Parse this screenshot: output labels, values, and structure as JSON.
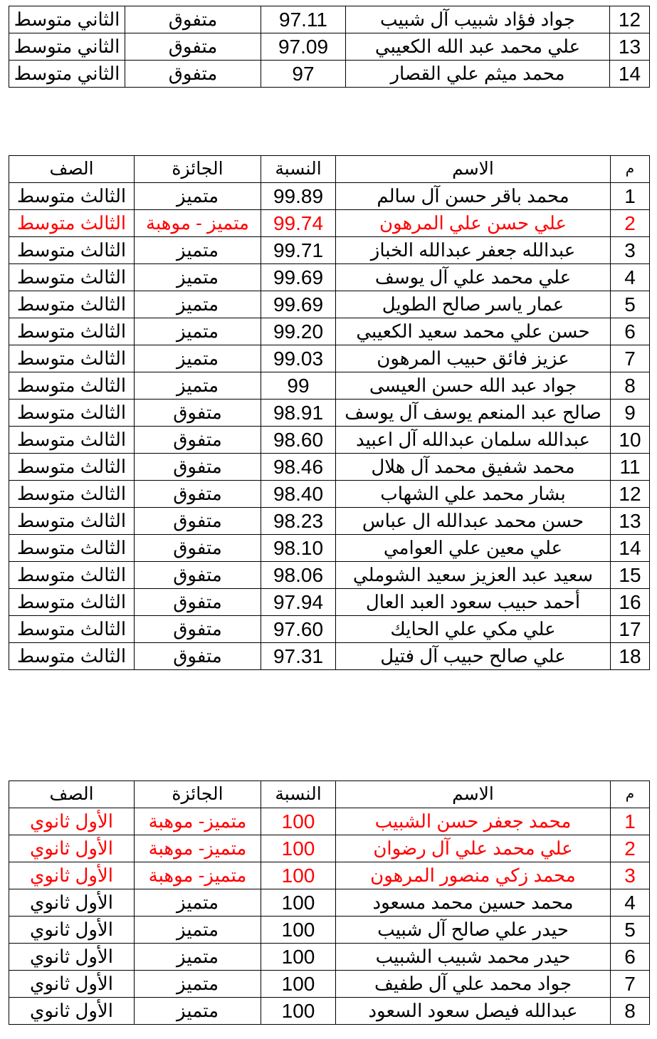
{
  "tables": [
    {
      "headers": null,
      "rows": [
        {
          "n": "12",
          "name": "جواد فؤاد شبيب آل شبيب",
          "pct": "97.11",
          "award": "متفوق",
          "grade": "الثاني متوسط",
          "highlight": false
        },
        {
          "n": "13",
          "name": "علي محمد عبد الله الكعيبي",
          "pct": "97.09",
          "award": "متفوق",
          "grade": "الثاني متوسط",
          "highlight": false
        },
        {
          "n": "14",
          "name": "محمد ميثم علي القصار",
          "pct": "97",
          "award": "متفوق",
          "grade": "الثاني متوسط",
          "highlight": false
        }
      ]
    },
    {
      "headers": {
        "n": "م",
        "name": "الاسم",
        "pct": "النسبة",
        "award": "الجائزة",
        "grade": "الصف"
      },
      "rows": [
        {
          "n": "1",
          "name": "محمد باقر حسن آل سالم",
          "pct": "99.89",
          "award": "متميز",
          "grade": "الثالث متوسط",
          "highlight": false
        },
        {
          "n": "2",
          "name": "علي حسن علي المرهون",
          "pct": "99.74",
          "award": "متميز - موهبة",
          "grade": "الثالث متوسط",
          "highlight": true
        },
        {
          "n": "3",
          "name": "عبدالله جعفر عبدالله الخباز",
          "pct": "99.71",
          "award": "متميز",
          "grade": "الثالث متوسط",
          "highlight": false
        },
        {
          "n": "4",
          "name": "علي محمد علي آل يوسف",
          "pct": "99.69",
          "award": "متميز",
          "grade": "الثالث متوسط",
          "highlight": false
        },
        {
          "n": "5",
          "name": "عمار ياسر صالح الطويل",
          "pct": "99.69",
          "award": "متميز",
          "grade": "الثالث متوسط",
          "highlight": false
        },
        {
          "n": "6",
          "name": "حسن علي محمد سعيد الكعيبي",
          "pct": "99.20",
          "award": "متميز",
          "grade": "الثالث متوسط",
          "highlight": false
        },
        {
          "n": "7",
          "name": "عزيز فائق حبيب المرهون",
          "pct": "99.03",
          "award": "متميز",
          "grade": "الثالث متوسط",
          "highlight": false
        },
        {
          "n": "8",
          "name": "جواد عبد الله حسن العيسى",
          "pct": "99",
          "award": "متميز",
          "grade": "الثالث متوسط",
          "highlight": false
        },
        {
          "n": "9",
          "name": "صالح عبد المنعم يوسف آل يوسف",
          "pct": "98.91",
          "award": "متفوق",
          "grade": "الثالث متوسط",
          "highlight": false
        },
        {
          "n": "10",
          "name": "عبدالله سلمان عبدالله آل اعبيد",
          "pct": "98.60",
          "award": "متفوق",
          "grade": "الثالث متوسط",
          "highlight": false
        },
        {
          "n": "11",
          "name": "محمد شفيق محمد آل هلال",
          "pct": "98.46",
          "award": "متفوق",
          "grade": "الثالث متوسط",
          "highlight": false
        },
        {
          "n": "12",
          "name": "بشار محمد علي الشهاب",
          "pct": "98.40",
          "award": "متفوق",
          "grade": "الثالث متوسط",
          "highlight": false
        },
        {
          "n": "13",
          "name": "حسن محمد عبدالله ال عباس",
          "pct": "98.23",
          "award": "متفوق",
          "grade": "الثالث متوسط",
          "highlight": false
        },
        {
          "n": "14",
          "name": "علي معين علي العوامي",
          "pct": "98.10",
          "award": "متفوق",
          "grade": "الثالث متوسط",
          "highlight": false
        },
        {
          "n": "15",
          "name": "سعيد عبد العزيز سعيد الشوملي",
          "pct": "98.06",
          "award": "متفوق",
          "grade": "الثالث متوسط",
          "highlight": false
        },
        {
          "n": "16",
          "name": "أحمد حبيب سعود العبد العال",
          "pct": "97.94",
          "award": "متفوق",
          "grade": "الثالث متوسط",
          "highlight": false
        },
        {
          "n": "17",
          "name": "علي مكي علي الحايك",
          "pct": "97.60",
          "award": "متفوق",
          "grade": "الثالث متوسط",
          "highlight": false
        },
        {
          "n": "18",
          "name": "علي صالح حبيب آل فتيل",
          "pct": "97.31",
          "award": "متفوق",
          "grade": "الثالث متوسط",
          "highlight": false
        }
      ]
    },
    {
      "headers": {
        "n": "م",
        "name": "الاسم",
        "pct": "النسبة",
        "award": "الجائزة",
        "grade": "الصف"
      },
      "rows": [
        {
          "n": "1",
          "name": "محمد جعفر حسن الشبيب",
          "pct": "100",
          "award": "متميز- موهبة",
          "grade": "الأول ثانوي",
          "highlight": true
        },
        {
          "n": "2",
          "name": "علي محمد علي آل رضوان",
          "pct": "100",
          "award": "متميز- موهبة",
          "grade": "الأول ثانوي",
          "highlight": true
        },
        {
          "n": "3",
          "name": "محمد زكي منصور المرهون",
          "pct": "100",
          "award": "متميز- موهبة",
          "grade": "الأول ثانوي",
          "highlight": true
        },
        {
          "n": "4",
          "name": "محمد حسين محمد مسعود",
          "pct": "100",
          "award": "متميز",
          "grade": "الأول ثانوي",
          "highlight": false
        },
        {
          "n": "5",
          "name": "حيدر علي صالح آل شبيب",
          "pct": "100",
          "award": "متميز",
          "grade": "الأول ثانوي",
          "highlight": false
        },
        {
          "n": "6",
          "name": "حيدر محمد شبيب الشبيب",
          "pct": "100",
          "award": "متميز",
          "grade": "الأول ثانوي",
          "highlight": false
        },
        {
          "n": "7",
          "name": "جواد محمد علي آل طفيف",
          "pct": "100",
          "award": "متميز",
          "grade": "الأول ثانوي",
          "highlight": false
        },
        {
          "n": "8",
          "name": "عبدالله فيصل سعود السعود",
          "pct": "100",
          "award": "متميز",
          "grade": "الأول ثانوي",
          "highlight": false
        }
      ]
    }
  ],
  "colors": {
    "highlight": "#ff0000",
    "text": "#000000"
  }
}
